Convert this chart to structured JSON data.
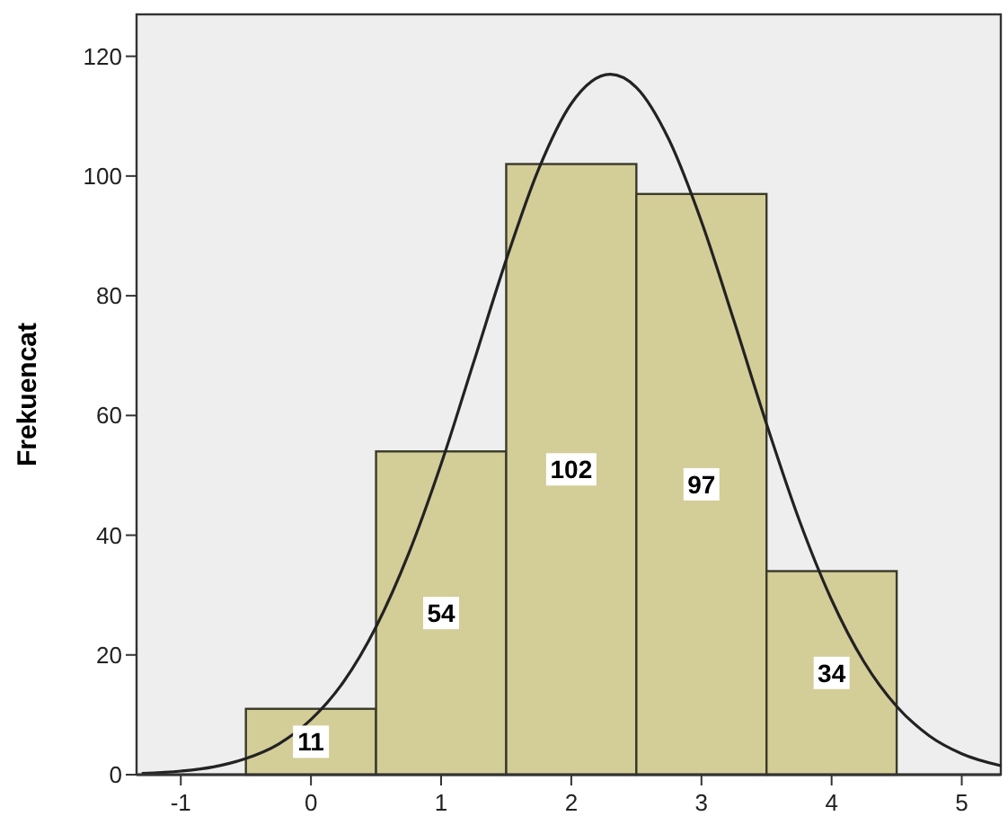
{
  "chart_data": {
    "type": "histogram",
    "ylabel": "Frekuencat",
    "bins": [
      -0.5,
      0.5,
      1.5,
      2.5,
      3.5,
      4.5
    ],
    "values": [
      11,
      54,
      102,
      97,
      34
    ],
    "color": "#d3cd98",
    "value_labels": [
      "11",
      "54",
      "102",
      "97",
      "34"
    ],
    "xlim": [
      -1.34,
      5.3
    ],
    "xticks": [
      -1,
      0,
      1,
      2,
      3,
      4,
      5
    ],
    "ylim": [
      0,
      127
    ],
    "yticks": [
      0,
      20,
      40,
      60,
      80,
      100,
      120
    ],
    "grid": false,
    "series": [
      {
        "type": "line",
        "color": "#222222",
        "marker": "none",
        "line_style": "solid",
        "x": [
          -1.3,
          -1,
          -0.75,
          -0.5,
          -0.25,
          0,
          0.25,
          0.5,
          0.75,
          1,
          1.25,
          1.5,
          1.75,
          2,
          2.3,
          2.5,
          2.75,
          3,
          3.25,
          3.5,
          3.75,
          4,
          4.25,
          4.5,
          4.75,
          5,
          5.3
        ],
        "values": [
          0.2,
          0.6,
          1.3,
          2.7,
          5.1,
          9.2,
          15.5,
          24.7,
          36.9,
          51.9,
          68.9,
          86,
          101.2,
          112.1,
          117,
          114.8,
          106.1,
          92.4,
          75.8,
          58.6,
          42.6,
          29.2,
          18.8,
          11.4,
          6.5,
          3.5,
          1.5
        ]
      }
    ]
  }
}
